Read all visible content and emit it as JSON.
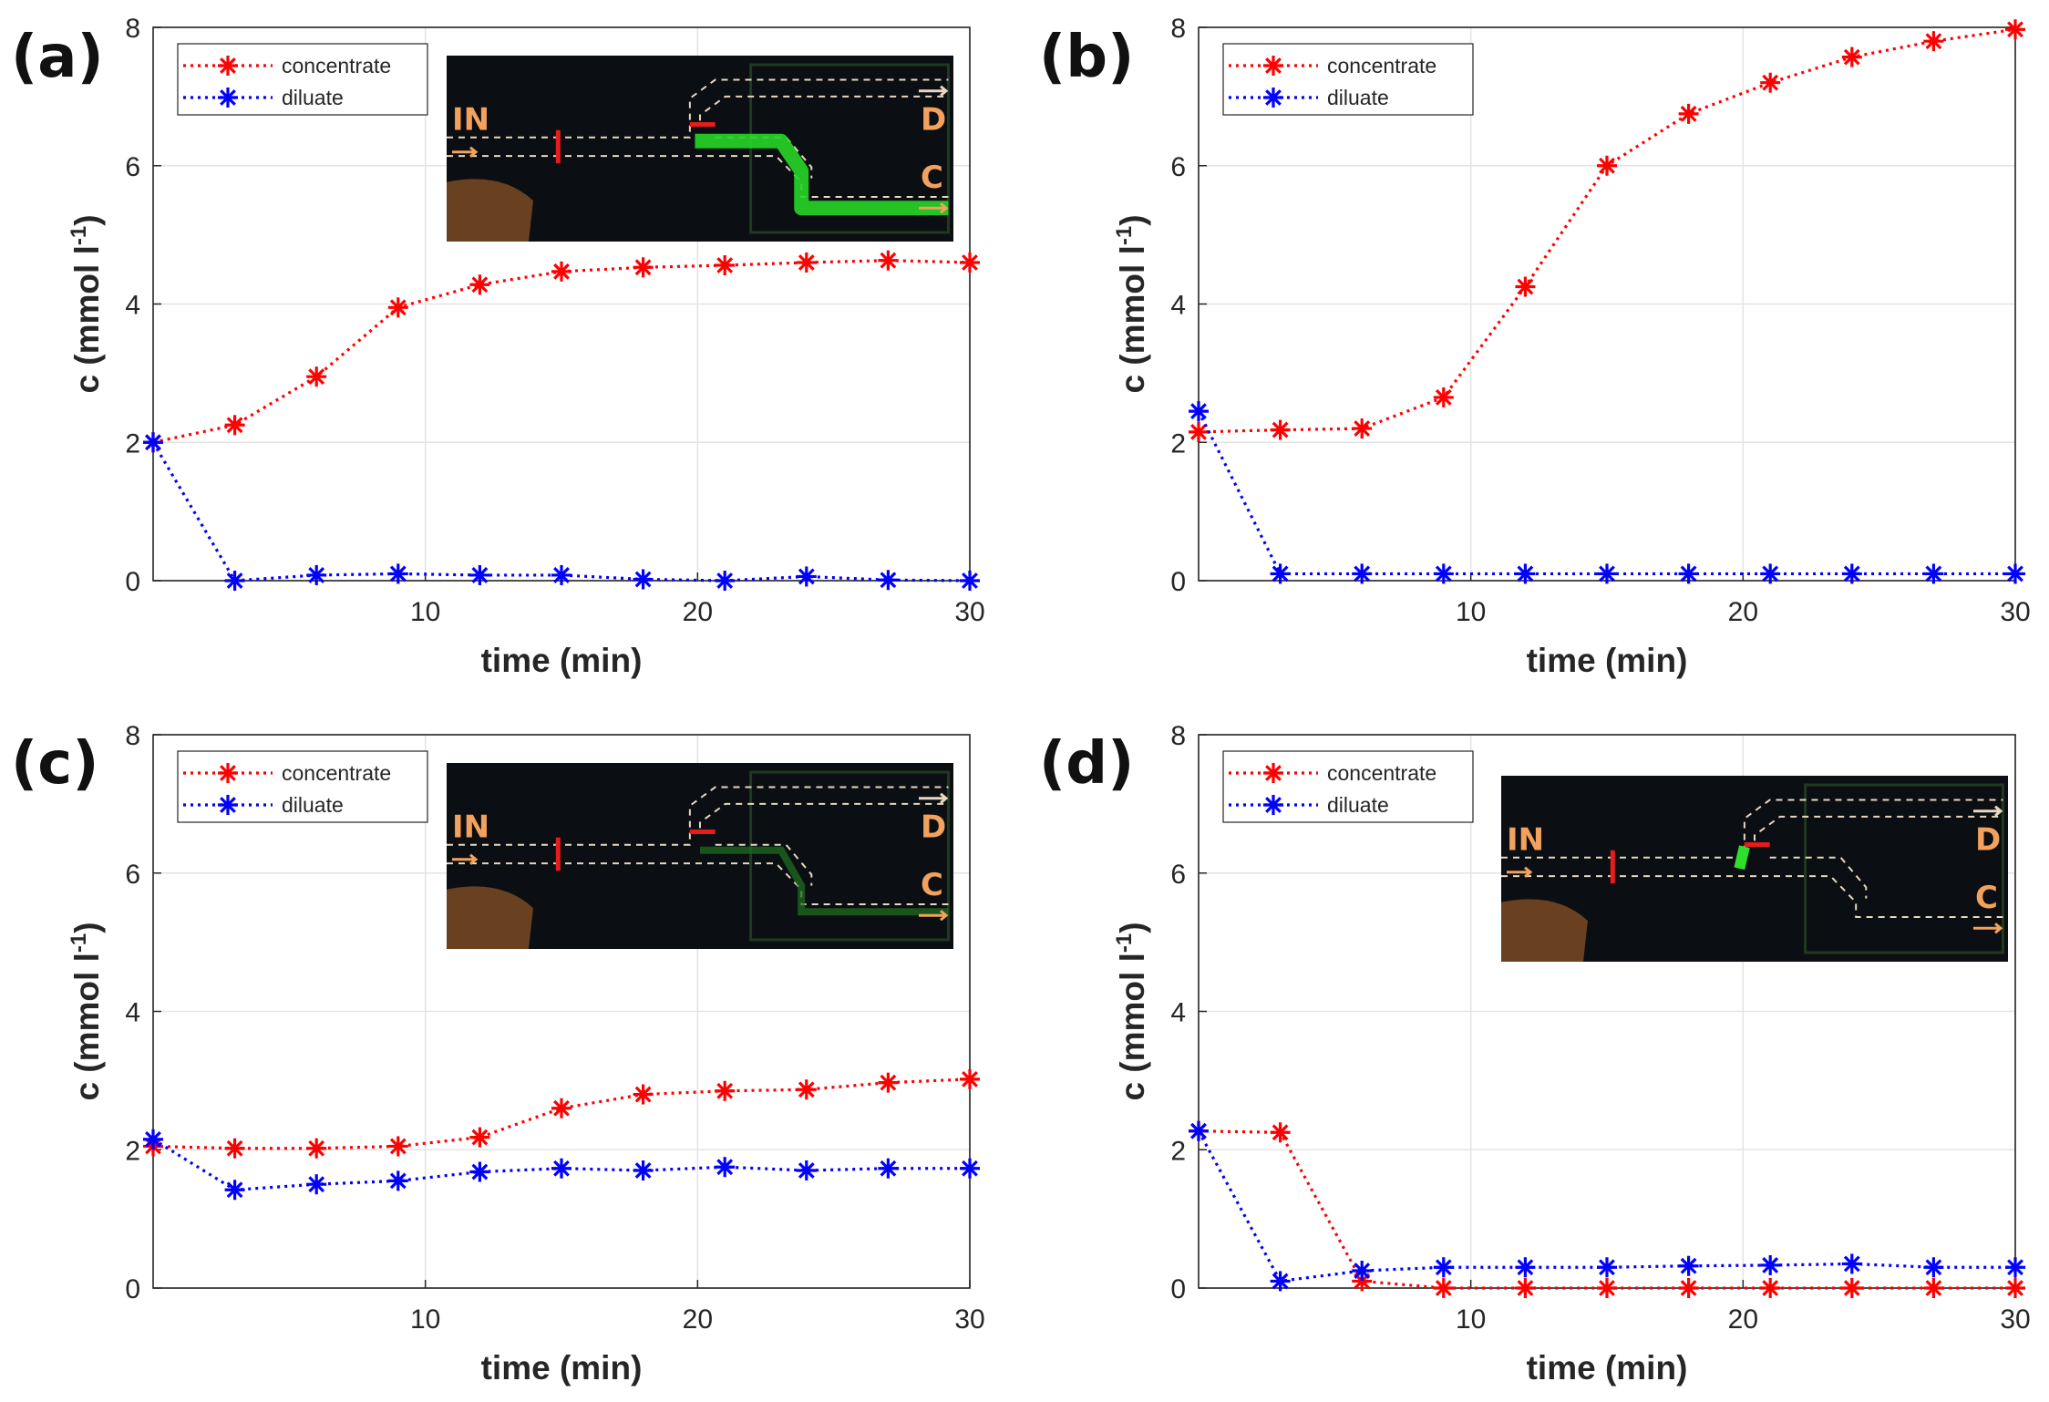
{
  "chart_data": [
    {
      "panel_label": "(a)",
      "type": "line",
      "xlabel": "time (min)",
      "ylabel_main": "c (mmol l",
      "ylabel_sup": "-1",
      "ylabel_close": ")",
      "xlim": [
        0,
        30
      ],
      "ylim": [
        0,
        8
      ],
      "xticks": [
        10,
        20,
        30
      ],
      "yticks": [
        0,
        2,
        4,
        6,
        8
      ],
      "grid": true,
      "legend_position": "top-left",
      "x": [
        0,
        3,
        6,
        9,
        12,
        15,
        18,
        21,
        24,
        27,
        30
      ],
      "series": [
        {
          "name": "concentrate",
          "color": "#ff0000",
          "values": [
            2.0,
            2.25,
            2.95,
            3.95,
            4.28,
            4.47,
            4.53,
            4.56,
            4.6,
            4.63,
            4.6
          ]
        },
        {
          "name": "diluate",
          "color": "#0000ff",
          "values": [
            2.0,
            0.0,
            0.08,
            0.1,
            0.08,
            0.08,
            0.02,
            0.0,
            0.06,
            0.01,
            0.0
          ]
        }
      ],
      "inset": {
        "show": true,
        "labels": [
          "IN",
          "D",
          "C"
        ],
        "channel_fill": "full"
      }
    },
    {
      "panel_label": "(b)",
      "type": "line",
      "xlabel": "time (min)",
      "ylabel_main": "c (mmol l",
      "ylabel_sup": "-1",
      "ylabel_close": ")",
      "xlim": [
        0,
        30
      ],
      "ylim": [
        0,
        8
      ],
      "xticks": [
        10,
        20,
        30
      ],
      "yticks": [
        0,
        2,
        4,
        6,
        8
      ],
      "grid": true,
      "legend_position": "top-left",
      "x": [
        0,
        3,
        6,
        9,
        12,
        15,
        18,
        21,
        24,
        27,
        30
      ],
      "series": [
        {
          "name": "concentrate",
          "color": "#ff0000",
          "values": [
            2.15,
            2.18,
            2.2,
            2.65,
            4.25,
            6.0,
            6.75,
            7.2,
            7.57,
            7.8,
            7.97
          ]
        },
        {
          "name": "diluate",
          "color": "#0000ff",
          "values": [
            2.45,
            0.1,
            0.1,
            0.1,
            0.1,
            0.1,
            0.1,
            0.1,
            0.1,
            0.1,
            0.1
          ]
        }
      ],
      "inset": {
        "show": false
      }
    },
    {
      "panel_label": "(c)",
      "type": "line",
      "xlabel": "time (min)",
      "ylabel_main": "c (mmol l",
      "ylabel_sup": "-1",
      "ylabel_close": ")",
      "xlim": [
        0,
        30
      ],
      "ylim": [
        0,
        8
      ],
      "xticks": [
        10,
        20,
        30
      ],
      "yticks": [
        0,
        2,
        4,
        6,
        8
      ],
      "grid": true,
      "legend_position": "top-left",
      "x": [
        0,
        3,
        6,
        9,
        12,
        15,
        18,
        21,
        24,
        27,
        30
      ],
      "series": [
        {
          "name": "concentrate",
          "color": "#ff0000",
          "values": [
            2.05,
            2.02,
            2.02,
            2.05,
            2.18,
            2.6,
            2.8,
            2.85,
            2.87,
            2.97,
            3.02
          ]
        },
        {
          "name": "diluate",
          "color": "#0000ff",
          "values": [
            2.15,
            1.42,
            1.5,
            1.55,
            1.68,
            1.73,
            1.7,
            1.75,
            1.7,
            1.73,
            1.73
          ]
        }
      ],
      "inset": {
        "show": true,
        "labels": [
          "IN",
          "D",
          "C"
        ],
        "channel_fill": "faint"
      }
    },
    {
      "panel_label": "(d)",
      "type": "line",
      "xlabel": "time (min)",
      "ylabel_main": "c (mmol l",
      "ylabel_sup": "-1",
      "ylabel_close": ")",
      "xlim": [
        0,
        30
      ],
      "ylim": [
        0,
        8
      ],
      "xticks": [
        10,
        20,
        30
      ],
      "yticks": [
        0,
        2,
        4,
        6,
        8
      ],
      "grid": true,
      "legend_position": "top-left",
      "x": [
        0,
        3,
        6,
        9,
        12,
        15,
        18,
        21,
        24,
        27,
        30
      ],
      "series": [
        {
          "name": "concentrate",
          "color": "#ff0000",
          "values": [
            2.27,
            2.25,
            0.1,
            0.0,
            0.0,
            0.0,
            0.0,
            0.0,
            0.0,
            0.0,
            0.0
          ]
        },
        {
          "name": "diluate",
          "color": "#0000ff",
          "values": [
            2.27,
            0.1,
            0.25,
            0.3,
            0.3,
            0.3,
            0.32,
            0.33,
            0.35,
            0.3,
            0.3
          ]
        }
      ],
      "inset": {
        "show": true,
        "labels": [
          "IN",
          "D",
          "C"
        ],
        "channel_fill": "none"
      }
    }
  ]
}
